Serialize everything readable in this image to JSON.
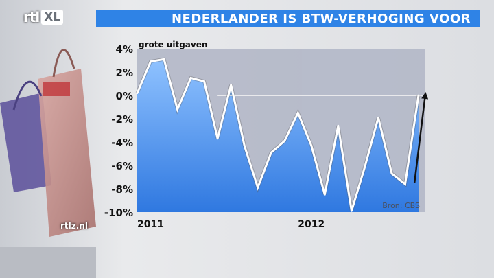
{
  "broadcaster": {
    "logo_text": "rtl",
    "logo_badge": "XL",
    "watermark": "rtlz.nl"
  },
  "header": {
    "title": "NEDERLANDER IS BTW-VERHOGING VOOR"
  },
  "colors": {
    "title_bar": "#2f83e6",
    "area_top": "#8fc2ff",
    "area_bottom": "#2f78e0",
    "line": "#ffffff",
    "arrow": "#111111"
  },
  "chart_data": {
    "type": "area",
    "subtitle": "grote uitgaven",
    "source": "Bron: CBS",
    "ylim": [
      -10,
      4
    ],
    "yticks": [
      "4%",
      "2%",
      "0%",
      "-2%",
      "-4%",
      "-6%",
      "-8%",
      "-10%"
    ],
    "xticks": [
      {
        "label": "2011",
        "index": 0
      },
      {
        "label": "2012",
        "index": 12
      }
    ],
    "reference_line": 0,
    "series": [
      {
        "values": [
          0.2,
          2.9,
          3.1,
          -1.2,
          1.5,
          1.2,
          -3.7,
          0.9,
          -4.3,
          -7.9,
          -4.9,
          -3.9,
          -1.5,
          -4.3,
          -8.5,
          -2.6,
          -9.9,
          -6.1,
          -1.9,
          -6.7,
          -7.6,
          0.0
        ]
      }
    ],
    "annotation": {
      "type": "arrow",
      "from_index": 20.7,
      "from_value": -7.6,
      "to_index": 21.5,
      "to_value": 0.0
    }
  }
}
